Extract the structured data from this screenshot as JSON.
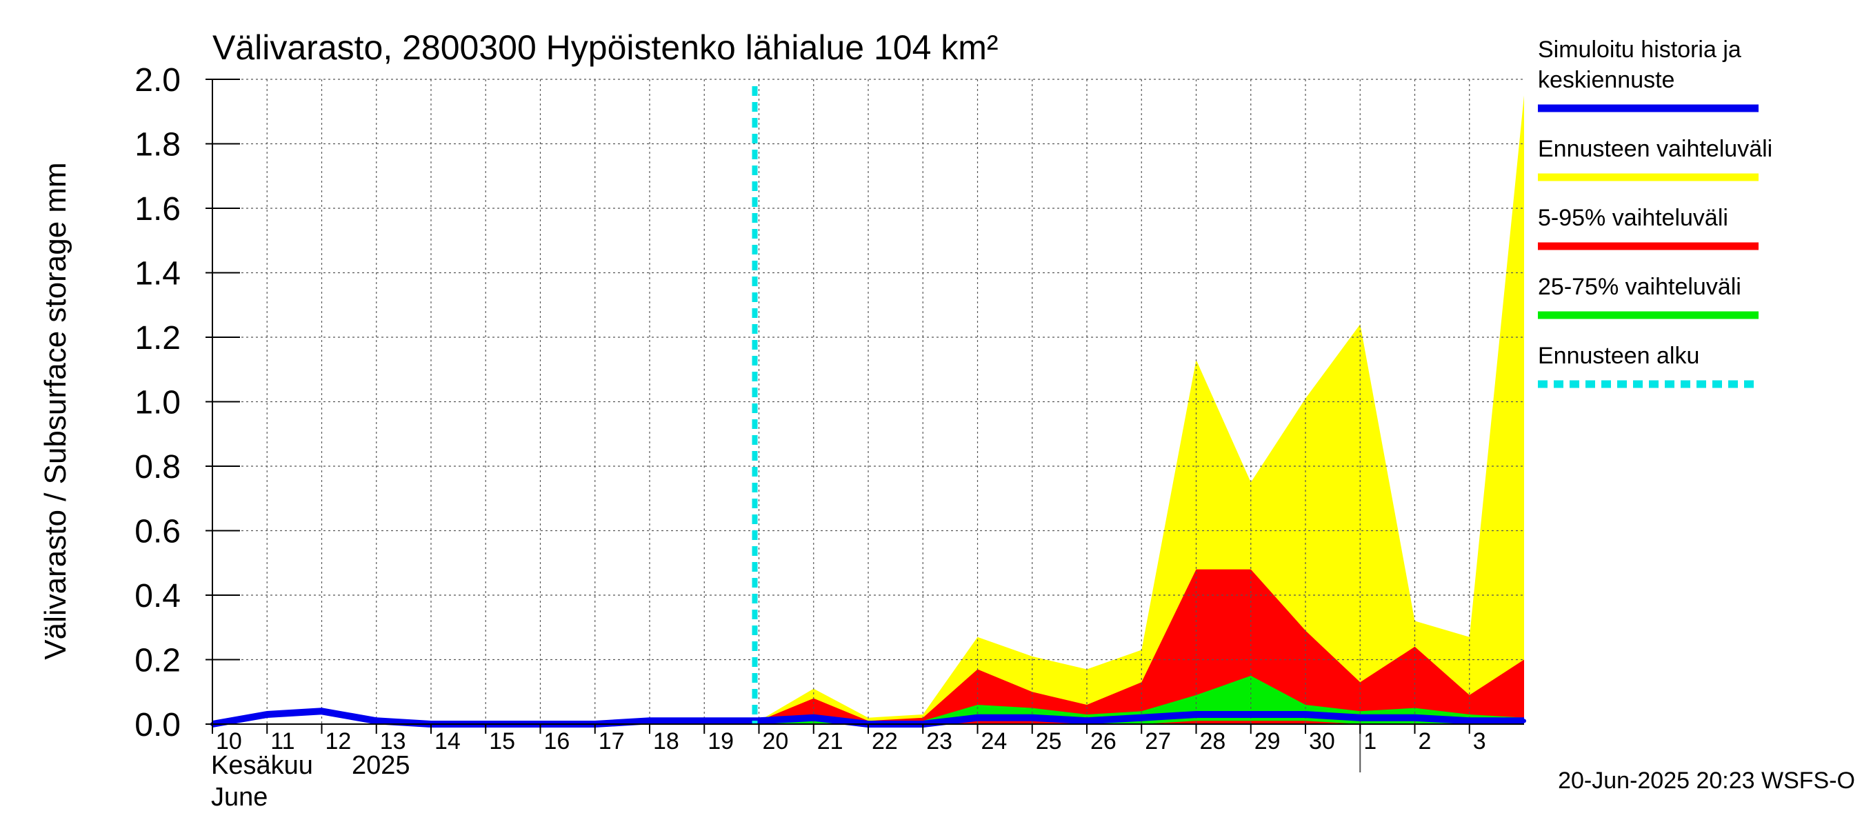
{
  "chart_data": {
    "type": "area",
    "title": "Välivarasto, 2800300 Hypöistenko lähialue 104 km²",
    "ylabel": "Välivarasto / Subsurface storage  mm",
    "ylim": [
      0.0,
      2.0
    ],
    "yticks": [
      "0.0",
      "0.2",
      "0.4",
      "0.6",
      "0.8",
      "1.0",
      "1.2",
      "1.4",
      "1.6",
      "1.8",
      "2.0"
    ],
    "xlim": [
      10,
      34
    ],
    "xticks": [
      {
        "day": 10,
        "label": "10"
      },
      {
        "day": 11,
        "label": "11"
      },
      {
        "day": 12,
        "label": "12"
      },
      {
        "day": 13,
        "label": "13"
      },
      {
        "day": 14,
        "label": "14"
      },
      {
        "day": 15,
        "label": "15"
      },
      {
        "day": 16,
        "label": "16"
      },
      {
        "day": 17,
        "label": "17"
      },
      {
        "day": 18,
        "label": "18"
      },
      {
        "day": 19,
        "label": "19"
      },
      {
        "day": 20,
        "label": "20"
      },
      {
        "day": 21,
        "label": "21"
      },
      {
        "day": 22,
        "label": "22"
      },
      {
        "day": 23,
        "label": "23"
      },
      {
        "day": 24,
        "label": "24"
      },
      {
        "day": 25,
        "label": "25"
      },
      {
        "day": 26,
        "label": "26"
      },
      {
        "day": 27,
        "label": "27"
      },
      {
        "day": 28,
        "label": "28"
      },
      {
        "day": 29,
        "label": "29"
      },
      {
        "day": 30,
        "label": "30"
      },
      {
        "day": 31,
        "label": "1"
      },
      {
        "day": 32,
        "label": "2"
      },
      {
        "day": 33,
        "label": "3"
      }
    ],
    "month_marker_day": 31,
    "xlabel_month_fi": "Kesäkuu",
    "xlabel_year": "2025",
    "xlabel_month_en": "June",
    "forecast_start_day": 20,
    "series": [
      {
        "name": "Ennusteen vaihteluväli",
        "color": "#ffff00",
        "x": [
          20,
          21,
          22,
          23,
          24,
          25,
          26,
          27,
          28,
          29,
          30,
          31,
          32,
          33,
          34
        ],
        "upper": [
          0.01,
          0.11,
          0.02,
          0.03,
          0.27,
          0.21,
          0.17,
          0.23,
          1.13,
          0.75,
          1.01,
          1.24,
          0.32,
          0.27,
          1.95
        ],
        "lower": [
          0.0,
          0.0,
          0.0,
          0.0,
          0.0,
          0.0,
          0.0,
          0.0,
          0.0,
          0.0,
          0.0,
          0.0,
          0.0,
          0.0,
          0.0
        ]
      },
      {
        "name": "5-95% vaihteluväli",
        "color": "#ff0000",
        "x": [
          20,
          21,
          22,
          23,
          24,
          25,
          26,
          27,
          28,
          29,
          30,
          31,
          32,
          33,
          34
        ],
        "upper": [
          0.01,
          0.08,
          0.01,
          0.02,
          0.17,
          0.1,
          0.06,
          0.13,
          0.48,
          0.48,
          0.29,
          0.13,
          0.24,
          0.09,
          0.2
        ],
        "lower": [
          0.0,
          0.0,
          0.0,
          0.0,
          0.0,
          0.0,
          0.0,
          0.0,
          0.0,
          0.0,
          0.0,
          0.0,
          0.0,
          0.0,
          0.0
        ]
      },
      {
        "name": "25-75% vaihteluväli",
        "color": "#00ee00",
        "x": [
          20,
          21,
          22,
          23,
          24,
          25,
          26,
          27,
          28,
          29,
          30,
          31,
          32,
          33,
          34
        ],
        "upper": [
          0.01,
          0.03,
          0.01,
          0.01,
          0.06,
          0.05,
          0.03,
          0.04,
          0.09,
          0.15,
          0.06,
          0.04,
          0.05,
          0.03,
          0.02
        ],
        "lower": [
          0.0,
          0.0,
          0.0,
          0.0,
          0.01,
          0.01,
          0.0,
          0.0,
          0.01,
          0.01,
          0.01,
          0.0,
          0.0,
          0.0,
          0.0
        ]
      },
      {
        "name": "Simuloitu historia ja keskiennuste",
        "color": "#0000ee",
        "x": [
          10,
          11,
          12,
          13,
          14,
          15,
          16,
          17,
          18,
          19,
          20,
          21,
          22,
          23,
          24,
          25,
          26,
          27,
          28,
          29,
          30,
          31,
          32,
          33,
          34
        ],
        "values": [
          0.0,
          0.03,
          0.04,
          0.01,
          0.0,
          0.0,
          0.0,
          0.0,
          0.01,
          0.01,
          0.01,
          0.02,
          0.0,
          0.0,
          0.02,
          0.02,
          0.01,
          0.02,
          0.03,
          0.03,
          0.03,
          0.02,
          0.02,
          0.01,
          0.01
        ]
      }
    ],
    "legend": [
      {
        "label_lines": [
          "Simuloitu historia ja",
          "keskiennuste"
        ],
        "color": "#0000ee",
        "style": "solid"
      },
      {
        "label_lines": [
          "Ennusteen vaihteluväli"
        ],
        "color": "#ffff00",
        "style": "solid"
      },
      {
        "label_lines": [
          "5-95% vaihteluväli"
        ],
        "color": "#ff0000",
        "style": "solid"
      },
      {
        "label_lines": [
          "25-75% vaihteluväli"
        ],
        "color": "#00ee00",
        "style": "solid"
      },
      {
        "label_lines": [
          "Ennusteen alku"
        ],
        "color": "#00e5e5",
        "style": "dashed"
      }
    ],
    "legend_position": "right",
    "grid": true
  },
  "footer": {
    "timestamp": "20-Jun-2025 20:23 WSFS-O"
  }
}
